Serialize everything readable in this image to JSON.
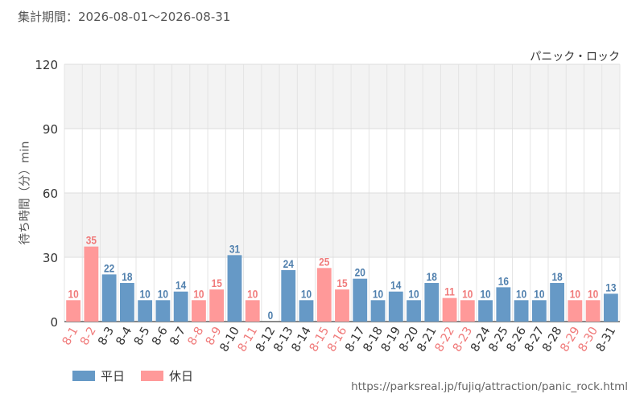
{
  "header": {
    "period": "集計期間：2026-08-01～2026-08-31"
  },
  "attraction": {
    "name": "パニック・ロック"
  },
  "source": {
    "url": "https://parksreal.jp/fujiq/attraction/panic_rock.html"
  },
  "colors": {
    "weekday": "#6699c6",
    "holiday": "#ff9999",
    "weekday_label": "#4f7fad",
    "holiday_label": "#f07a7a"
  },
  "legend": {
    "weekday": "平日",
    "holiday": "休日"
  },
  "chart_data": {
    "type": "bar",
    "ylabel": "待ち時間（分）min",
    "ylim": [
      0,
      120
    ],
    "yticks": [
      "0",
      "30",
      "60",
      "90",
      "120"
    ],
    "grid": true,
    "legend_position": "bottom-left",
    "categories": [
      "8-1",
      "8-2",
      "8-3",
      "8-4",
      "8-5",
      "8-6",
      "8-7",
      "8-8",
      "8-9",
      "8-10",
      "8-11",
      "8-12",
      "8-13",
      "8-14",
      "8-15",
      "8-16",
      "8-17",
      "8-18",
      "8-19",
      "8-20",
      "8-21",
      "8-22",
      "8-23",
      "8-24",
      "8-25",
      "8-26",
      "8-27",
      "8-28",
      "8-29",
      "8-30",
      "8-31"
    ],
    "values": [
      10,
      35,
      22,
      18,
      10,
      10,
      14,
      10,
      15,
      31,
      10,
      0,
      24,
      10,
      25,
      15,
      20,
      10,
      14,
      10,
      18,
      11,
      10,
      10,
      16,
      10,
      10,
      18,
      10,
      10,
      13
    ],
    "day_type": [
      "holiday",
      "holiday",
      "weekday",
      "weekday",
      "weekday",
      "weekday",
      "weekday",
      "holiday",
      "holiday",
      "weekday",
      "holiday",
      "weekday",
      "weekday",
      "weekday",
      "holiday",
      "holiday",
      "weekday",
      "weekday",
      "weekday",
      "weekday",
      "weekday",
      "holiday",
      "holiday",
      "weekday",
      "weekday",
      "weekday",
      "weekday",
      "weekday",
      "holiday",
      "holiday",
      "weekday"
    ]
  }
}
